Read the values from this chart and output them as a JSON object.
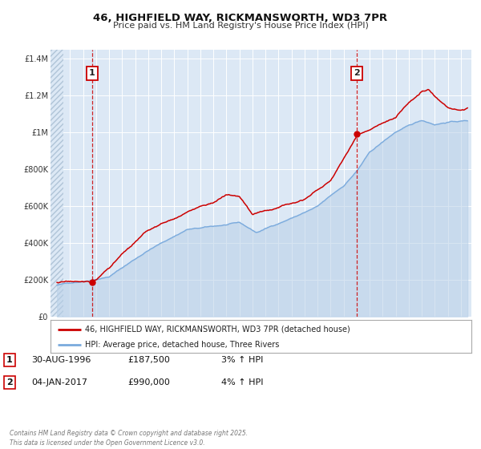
{
  "title": "46, HIGHFIELD WAY, RICKMANSWORTH, WD3 7PR",
  "subtitle": "Price paid vs. HM Land Registry's House Price Index (HPI)",
  "background_color": "#ffffff",
  "plot_bg_color": "#dce8f5",
  "hatch_color": "#c8d8e8",
  "grid_color": "#ffffff",
  "red_line_color": "#cc0000",
  "blue_line_color": "#7aaadd",
  "blue_fill_color": "#b8d0e8",
  "marker1_date": 1996.67,
  "marker1_value": 187500,
  "marker2_date": 2017.03,
  "marker2_value": 990000,
  "legend_label_red": "46, HIGHFIELD WAY, RICKMANSWORTH, WD3 7PR (detached house)",
  "legend_label_blue": "HPI: Average price, detached house, Three Rivers",
  "note1_date": "30-AUG-1996",
  "note1_price": "£187,500",
  "note1_hpi": "3% ↑ HPI",
  "note2_date": "04-JAN-2017",
  "note2_price": "£990,000",
  "note2_hpi": "4% ↑ HPI",
  "footer": "Contains HM Land Registry data © Crown copyright and database right 2025.\nThis data is licensed under the Open Government Licence v3.0.",
  "ylim": [
    0,
    1450000
  ],
  "xlim": [
    1993.5,
    2025.8
  ],
  "yticks": [
    0,
    200000,
    400000,
    600000,
    800000,
    1000000,
    1200000,
    1400000
  ],
  "ytick_labels": [
    "£0",
    "£200K",
    "£400K",
    "£600K",
    "£800K",
    "£1M",
    "£1.2M",
    "£1.4M"
  ],
  "xticks": [
    1994,
    1995,
    1996,
    1997,
    1998,
    1999,
    2000,
    2001,
    2002,
    2003,
    2004,
    2005,
    2006,
    2007,
    2008,
    2009,
    2010,
    2011,
    2012,
    2013,
    2014,
    2015,
    2016,
    2017,
    2018,
    2019,
    2020,
    2021,
    2022,
    2023,
    2024,
    2025
  ],
  "hatch_end": 1994.5
}
